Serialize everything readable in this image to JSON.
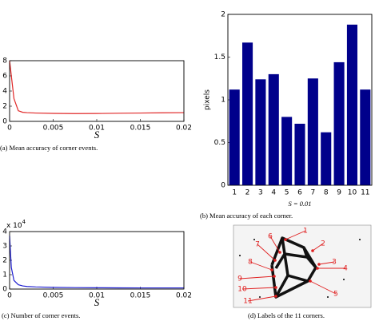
{
  "chart_data": [
    {
      "type": "line",
      "caption": "(a) Mean accuracy of corner events.",
      "xlabel": "S",
      "x": [
        0,
        0.0002,
        0.0005,
        0.001,
        0.0015,
        0.002,
        0.003,
        0.005,
        0.0075,
        0.01,
        0.0125,
        0.015,
        0.0175,
        0.02
      ],
      "values": [
        8,
        6,
        3,
        1.4,
        1.2,
        1.15,
        1.1,
        1.05,
        1.03,
        1.04,
        1.07,
        1.1,
        1.13,
        1.15
      ],
      "color": "#e02828",
      "xlim": [
        0,
        0.02
      ],
      "xticks": [
        0,
        0.005,
        0.01,
        0.015,
        0.02
      ],
      "ylim": [
        0,
        8
      ],
      "yticks": [
        0,
        2,
        4,
        6,
        8
      ]
    },
    {
      "type": "bar",
      "caption": "(b) Mean accuracy of each corner.",
      "xlabel": "S = 0.01",
      "ylabel": "pixels",
      "categories": [
        "1",
        "2",
        "3",
        "4",
        "5",
        "6",
        "7",
        "8",
        "9",
        "10",
        "11"
      ],
      "values": [
        1.12,
        1.67,
        1.24,
        1.3,
        0.8,
        0.72,
        1.25,
        0.62,
        1.44,
        1.88,
        1.12
      ],
      "color": "#00008b",
      "ylim": [
        0,
        2
      ],
      "yticks": [
        0,
        0.5,
        1,
        1.5,
        2
      ]
    },
    {
      "type": "line",
      "caption": "(c) Number of corner events.",
      "xlabel": "S",
      "y_multiplier": {
        "base": "x 10",
        "exponent": "4"
      },
      "x": [
        0,
        0.0002,
        0.0005,
        0.001,
        0.0015,
        0.002,
        0.003,
        0.005,
        0.0075,
        0.01,
        0.0125,
        0.015,
        0.0175,
        0.02
      ],
      "values": [
        3.7,
        1.5,
        0.6,
        0.3,
        0.22,
        0.18,
        0.15,
        0.12,
        0.1,
        0.09,
        0.085,
        0.08,
        0.08,
        0.08
      ],
      "color": "#2020d0",
      "xlim": [
        0,
        0.02
      ],
      "xticks": [
        0,
        0.005,
        0.01,
        0.015,
        0.02
      ],
      "ylim": [
        0,
        4
      ],
      "yticks": [
        0,
        1,
        2,
        3,
        4
      ]
    }
  ],
  "image": {
    "caption": "(d) Labels of the 11 corners.",
    "labels": [
      "1",
      "2",
      "3",
      "4",
      "5",
      "6",
      "7",
      "8",
      "9",
      "10",
      "11"
    ]
  }
}
